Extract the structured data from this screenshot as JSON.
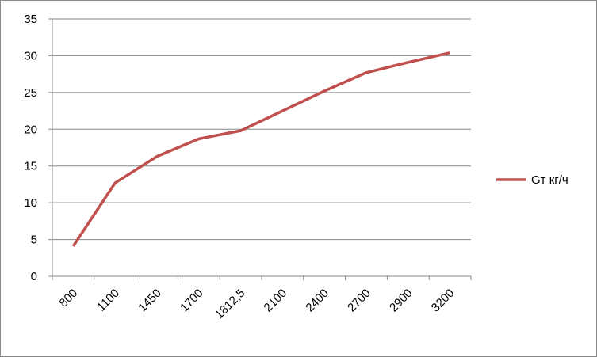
{
  "chart_data": {
    "type": "line",
    "categories": [
      "800",
      "1100",
      "1450",
      "1700",
      "1812,5",
      "2100",
      "2400",
      "2700",
      "2900",
      "3200"
    ],
    "series": [
      {
        "name": "Gт кг/ч",
        "color": "#c0504d",
        "values": [
          4.1,
          12.7,
          16.3,
          18.7,
          19.8,
          22.5,
          25.2,
          27.7,
          29.1,
          30.4
        ]
      }
    ],
    "ylim": [
      0,
      35
    ],
    "yticks": [
      0,
      5,
      10,
      15,
      20,
      25,
      30,
      35
    ],
    "grid": true,
    "legend": "right"
  }
}
